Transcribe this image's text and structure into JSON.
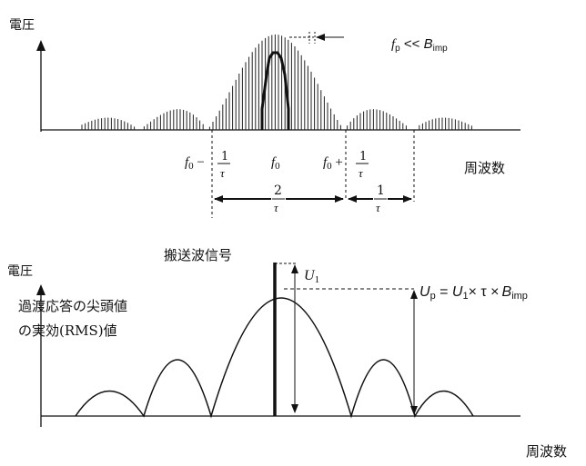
{
  "top_panel": {
    "y_axis_label": "電圧",
    "x_axis_label": "周波数",
    "annotation": {
      "f": "f",
      "f_sub": "p",
      "relation": " << ",
      "b": "B",
      "b_sub": "imp"
    },
    "tick_labels": {
      "left": {
        "base": "f",
        "sub": "0",
        "op": " − ",
        "num": "1",
        "den": "τ"
      },
      "center": {
        "base": "f",
        "sub": "0"
      },
      "right": {
        "base": "f",
        "sub": "0",
        "op": " + ",
        "num": "1",
        "den": "τ"
      }
    },
    "spans": [
      {
        "num": "2",
        "den": "τ"
      },
      {
        "num": "1",
        "den": "τ"
      }
    ]
  },
  "bottom_panel": {
    "y_axis_label": "電圧",
    "x_axis_label": "周波数",
    "carrier_label": "搬送波信号",
    "u1_label": {
      "base": "U",
      "sub": "1"
    },
    "caption_line1": "過渡応答の尖頭値",
    "caption_line2": "の実効(RMS)値",
    "formula": {
      "lhs": "U",
      "lhs_sub": "p",
      "eq": " = ",
      "u": "U",
      "u_sub": "1",
      "times1": "× τ ×",
      "b": "B",
      "b_sub": "imp"
    }
  }
}
